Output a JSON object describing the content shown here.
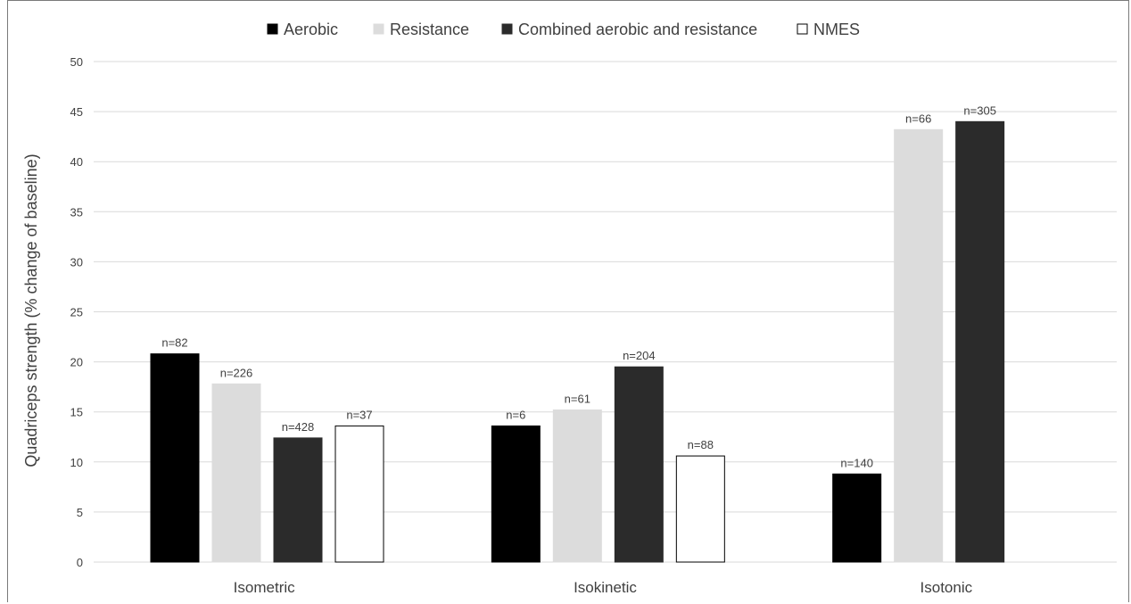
{
  "chart_data": {
    "type": "bar",
    "title": "",
    "xlabel": "",
    "ylabel": "Quadriceps strength (% change of baseline)",
    "ylim": [
      0,
      50
    ],
    "yticks": [
      0,
      5,
      10,
      15,
      20,
      25,
      30,
      35,
      40,
      45,
      50
    ],
    "grid": true,
    "legend_position": "top",
    "categories": [
      "Isometric",
      "Isokinetic",
      "Isotonic"
    ],
    "series": [
      {
        "name": "Aerobic",
        "color": "#000000",
        "stroke": "#000000",
        "values": [
          20.8,
          13.6,
          8.8
        ],
        "labels": [
          "n=82",
          "n=6",
          "n=140"
        ]
      },
      {
        "name": "Resistance",
        "color": "#dcdcdc",
        "stroke": "#dcdcdc",
        "values": [
          17.8,
          15.2,
          43.2
        ],
        "labels": [
          "n=226",
          "n=61",
          "n=66"
        ]
      },
      {
        "name": "Combined aerobic and resistance",
        "color": "#2b2b2b",
        "stroke": "#2b2b2b",
        "values": [
          12.4,
          19.5,
          44.0
        ],
        "labels": [
          "n=428",
          "n=204",
          "n=305"
        ]
      },
      {
        "name": "NMES",
        "color": "#ffffff",
        "stroke": "#000000",
        "values": [
          13.6,
          10.6,
          null
        ],
        "labels": [
          "n=37",
          "n=88",
          ""
        ]
      }
    ]
  }
}
